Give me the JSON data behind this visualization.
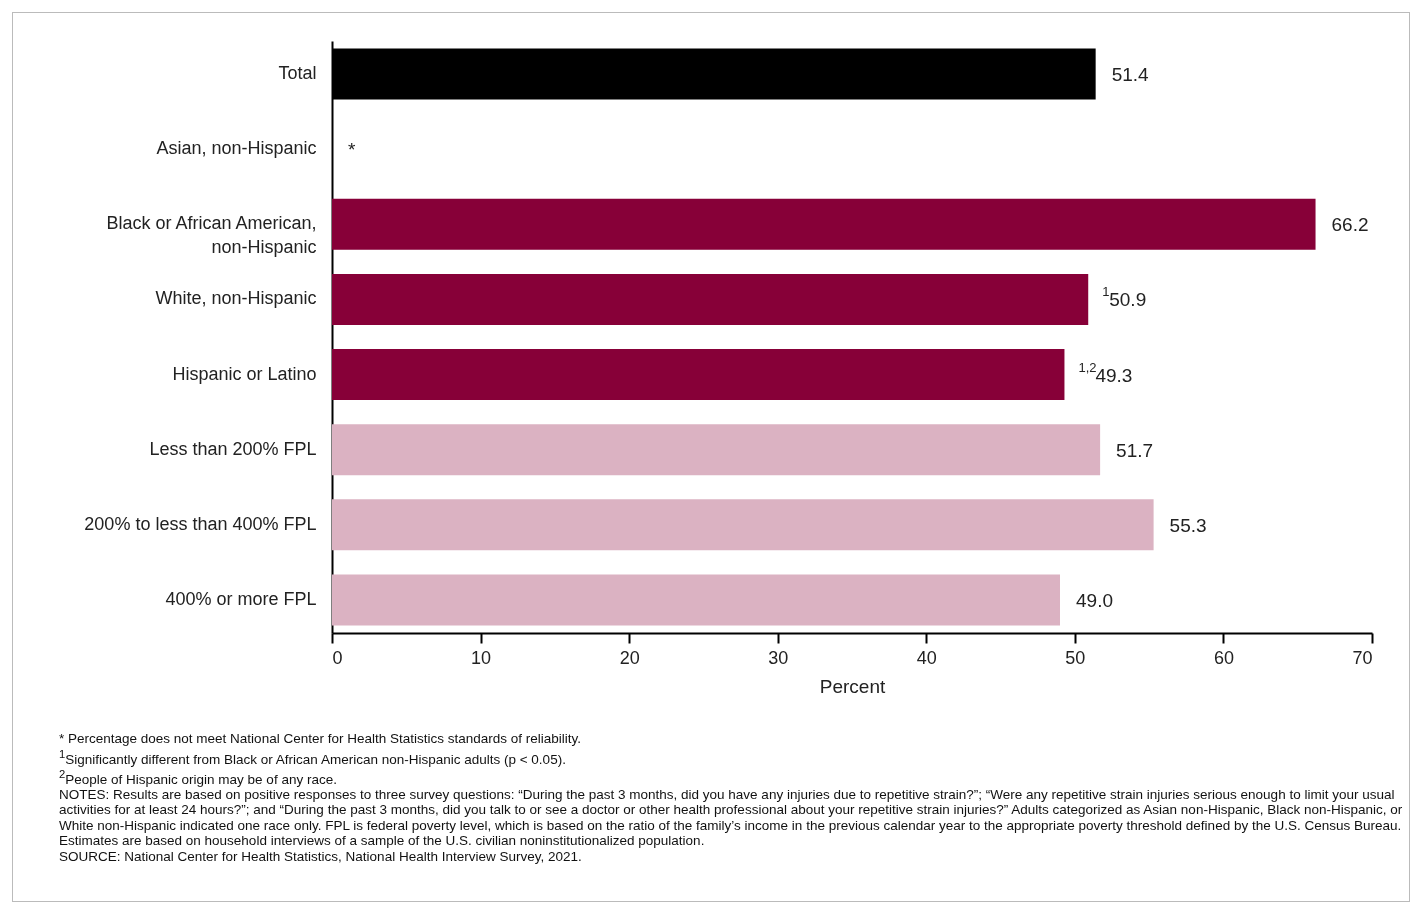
{
  "chart_data": {
    "type": "bar",
    "orientation": "horizontal",
    "categories": [
      "Total",
      "Asian, non-Hispanic",
      "Black or African American, non-Hispanic",
      "White, non-Hispanic",
      "Hispanic or Latino",
      "Less than 200% FPL",
      "200% to less than 400% FPL",
      "400% or more FPL"
    ],
    "values": [
      51.4,
      null,
      66.2,
      50.9,
      49.3,
      51.7,
      55.3,
      49.0
    ],
    "colors": [
      "#000000",
      "#870038",
      "#870038",
      "#870038",
      "#870038",
      "#dbb2c2",
      "#dbb2c2",
      "#dbb2c2"
    ],
    "value_labels": [
      "51.4",
      "*",
      "66.2",
      "$^{1}$50.9",
      "$^{1,2}$49.3",
      "51.7",
      "55.3",
      "49.0"
    ],
    "xlabel": "Percent",
    "xlim": [
      0,
      70
    ],
    "xticks": [
      0,
      10,
      20,
      30,
      40,
      50,
      60,
      70
    ],
    "grid": false,
    "annotations": [
      "* Percentage does not meet National Center for Health Statistics standards of reliability.",
      "$^{1}$Significantly different from Black or African American non-Hispanic adults (p < 0.05).",
      "$^{2}$People of Hispanic origin may be of any race.",
      "NOTES: Results are based on positive responses to three survey questions: “During the past 3 months, did you have any injuries due to repetitive strain?”; “Were any repetitive strain injuries serious enough to limit your usual activities for at least 24 hours?”; and “During the past 3 months, did you talk to or see a doctor or other health professional about your repetitive strain injuries?” Adults categorized as Asian non-Hispanic, Black non-Hispanic, or White non-Hispanic indicated one race only. FPL is federal poverty level, which is based on the ratio of the family’s income in the previous calendar year to the appropriate poverty threshold defined by the U.S. Census Bureau. Estimates are based on household interviews of a sample of the U.S. civilian noninstitutionalized population.",
      "SOURCE: National Center for Health Statistics, National Health Interview Survey, 2021."
    ]
  }
}
